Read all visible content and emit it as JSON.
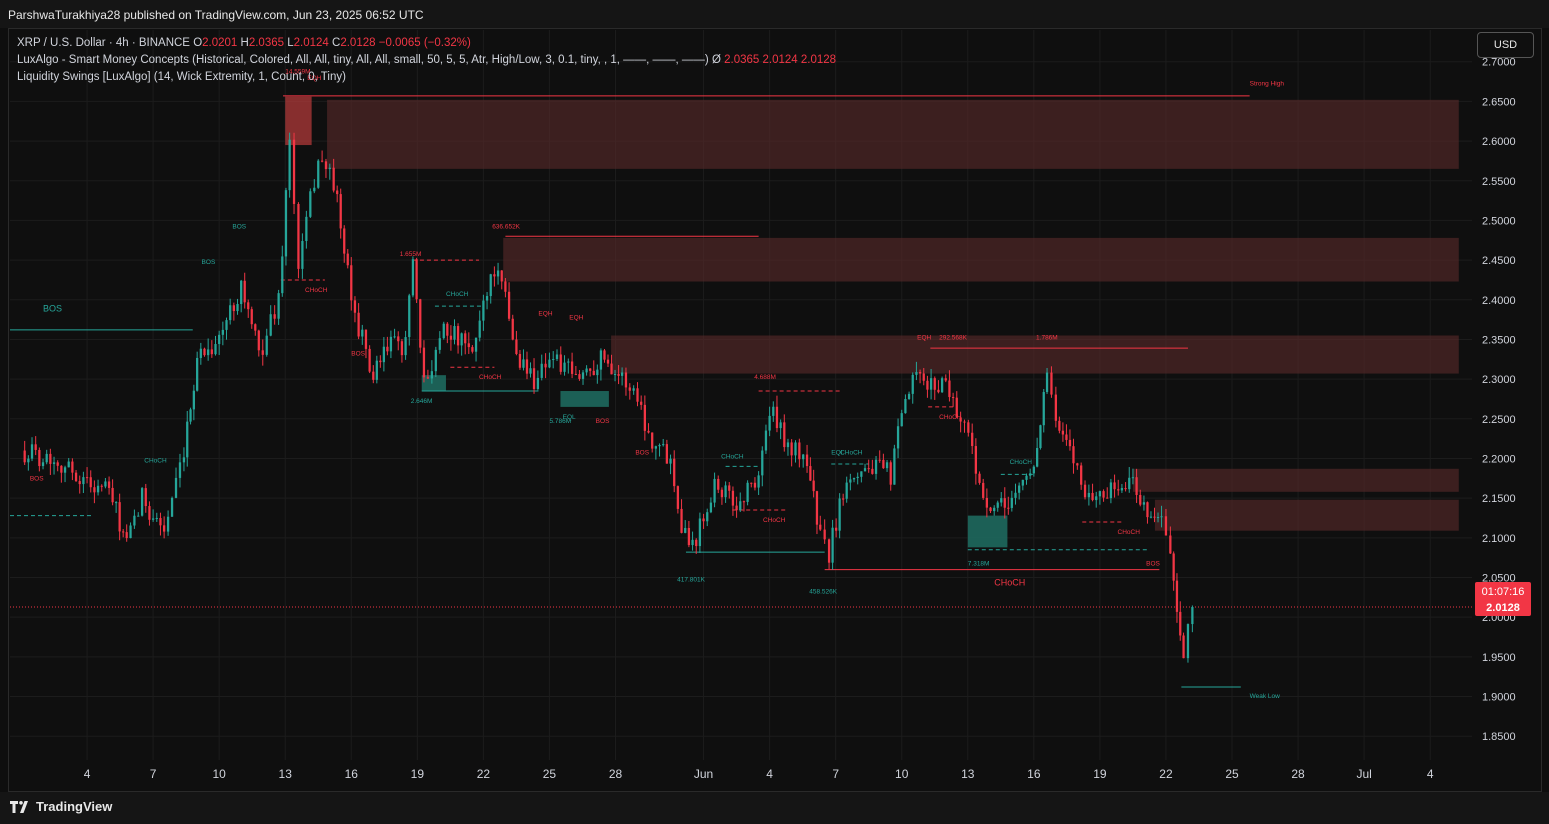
{
  "header": {
    "publisher_text": "ParshwaTurakhiya28 published on TradingView.com, Jun 23, 2025 06:52 UTC"
  },
  "legend": {
    "symbol": "XRP / U.S. Dollar · 4h · BINANCE",
    "o_label": "O",
    "o_value": "2.0201",
    "h_label": "H",
    "h_value": "2.0365",
    "l_label": "L",
    "l_value": "2.0124",
    "c_label": "C",
    "c_value": "2.0128",
    "change": "−0.0065 (−0.32%)",
    "indicator1": "LuxAlgo - Smart Money Concepts (Historical, Colored, All, All, tiny, All, All, small, 50, 5, 5, Atr, High/Low, 3, 0.1, tiny, , 1, ——, ——, ——)",
    "indicator1_symbol": "Ø",
    "indicator1_values": [
      "2.0365",
      "2.0124",
      "2.0128"
    ],
    "indicator2": "Liquidity Swings [LuxAlgo] (14, Wick Extremity, 1, Count, 0, Tiny)"
  },
  "currency_button": "USD",
  "brand": "TradingView",
  "colors": {
    "up": "#26a69a",
    "down": "#f23645",
    "supply_zone": "#5a2a2a",
    "demand_zone": "#1f6f63",
    "price_tag": "#f23645"
  },
  "chart_data": {
    "type": "candlestick",
    "symbol": "XRPUSD",
    "timeframe": "4h",
    "ylim": [
      1.82,
      2.74
    ],
    "y_ticks": [
      1.85,
      1.9,
      1.95,
      2.0,
      2.05,
      2.1,
      2.15,
      2.2,
      2.25,
      2.3,
      2.35,
      2.4,
      2.45,
      2.5,
      2.55,
      2.6,
      2.65,
      2.7
    ],
    "y_tick_labels": [
      "1.8500",
      "1.9000",
      "1.9500",
      "2.0000",
      "2.0500",
      "2.1000",
      "2.1500",
      "2.2000",
      "2.2500",
      "2.3000",
      "2.3500",
      "2.4000",
      "2.4500",
      "2.5000",
      "2.5500",
      "2.6000",
      "2.6500",
      "2.7000"
    ],
    "x_range_days": [
      -0.5,
      65.9
    ],
    "x_ticks": [
      {
        "day": 3,
        "label": "4"
      },
      {
        "day": 6,
        "label": "7"
      },
      {
        "day": 9,
        "label": "10"
      },
      {
        "day": 12,
        "label": "13"
      },
      {
        "day": 15,
        "label": "16"
      },
      {
        "day": 18,
        "label": "19"
      },
      {
        "day": 21,
        "label": "22"
      },
      {
        "day": 24,
        "label": "25"
      },
      {
        "day": 27,
        "label": "28"
      },
      {
        "day": 31,
        "label": "Jun"
      },
      {
        "day": 34,
        "label": "4"
      },
      {
        "day": 37,
        "label": "7"
      },
      {
        "day": 40,
        "label": "10"
      },
      {
        "day": 43,
        "label": "13"
      },
      {
        "day": 46,
        "label": "16"
      },
      {
        "day": 49,
        "label": "19"
      },
      {
        "day": 52,
        "label": "22"
      },
      {
        "day": 55,
        "label": "25"
      },
      {
        "day": 58,
        "label": "28"
      },
      {
        "day": 61,
        "label": "Jul"
      },
      {
        "day": 64,
        "label": "4"
      }
    ],
    "x_days_note_hidden": true,
    "anchors": [
      [
        0,
        2.21
      ],
      [
        1.5,
        2.2
      ],
      [
        3,
        2.17
      ],
      [
        4,
        2.16
      ],
      [
        4.8,
        2.09
      ],
      [
        5.5,
        2.15
      ],
      [
        6.5,
        2.11
      ],
      [
        7.4,
        2.2
      ],
      [
        8,
        2.33
      ],
      [
        9,
        2.35
      ],
      [
        10,
        2.42
      ],
      [
        10.8,
        2.33
      ],
      [
        11.7,
        2.4
      ],
      [
        12.2,
        2.6
      ],
      [
        12.6,
        2.44
      ],
      [
        13.5,
        2.58
      ],
      [
        14.2,
        2.55
      ],
      [
        15,
        2.4
      ],
      [
        16,
        2.3
      ],
      [
        16.8,
        2.35
      ],
      [
        17.3,
        2.33
      ],
      [
        17.8,
        2.44
      ],
      [
        18.3,
        2.29
      ],
      [
        19.2,
        2.37
      ],
      [
        20.5,
        2.33
      ],
      [
        21,
        2.4
      ],
      [
        21.5,
        2.44
      ],
      [
        22,
        2.4
      ],
      [
        22.5,
        2.33
      ],
      [
        23.3,
        2.3
      ],
      [
        24,
        2.33
      ],
      [
        25.2,
        2.3
      ],
      [
        26.5,
        2.33
      ],
      [
        27.3,
        2.3
      ],
      [
        28,
        2.28
      ],
      [
        28.5,
        2.23
      ],
      [
        29.5,
        2.2
      ],
      [
        30,
        2.12
      ],
      [
        30.5,
        2.09
      ],
      [
        31.5,
        2.17
      ],
      [
        32.5,
        2.14
      ],
      [
        33.5,
        2.18
      ],
      [
        34,
        2.26
      ],
      [
        35,
        2.21
      ],
      [
        35.7,
        2.2
      ],
      [
        36.3,
        2.1
      ],
      [
        36.7,
        2.08
      ],
      [
        37.5,
        2.18
      ],
      [
        38.5,
        2.19
      ],
      [
        39.5,
        2.18
      ],
      [
        40,
        2.25
      ],
      [
        40.5,
        2.3
      ],
      [
        41.5,
        2.29
      ],
      [
        42,
        2.3
      ],
      [
        42.5,
        2.26
      ],
      [
        43.2,
        2.22
      ],
      [
        43.7,
        2.14
      ],
      [
        44.2,
        2.13
      ],
      [
        45,
        2.15
      ],
      [
        46,
        2.19
      ],
      [
        46.6,
        2.31
      ],
      [
        47,
        2.24
      ],
      [
        47.8,
        2.2
      ],
      [
        48.5,
        2.15
      ],
      [
        49.5,
        2.16
      ],
      [
        50.5,
        2.17
      ],
      [
        51,
        2.14
      ],
      [
        51.8,
        2.12
      ],
      [
        52.2,
        2.08
      ],
      [
        52.5,
        2.0
      ],
      [
        52.8,
        1.94
      ],
      [
        53.2,
        2.02
      ]
    ],
    "last_price": 2.0128,
    "last_price_label": "2.0128",
    "countdown_label": "01:07:16",
    "zones": [
      {
        "kind": "supply",
        "x0": 13.9,
        "x1": 65.3,
        "y0": 2.565,
        "y1": 2.652
      },
      {
        "kind": "supply",
        "x0": 21.9,
        "x1": 65.3,
        "y0": 2.423,
        "y1": 2.478
      },
      {
        "kind": "supply",
        "x0": 26.8,
        "x1": 65.3,
        "y0": 2.307,
        "y1": 2.355
      },
      {
        "kind": "supply",
        "x0": 50.5,
        "x1": 65.3,
        "y0": 2.158,
        "y1": 2.187
      },
      {
        "kind": "supply",
        "x0": 51.5,
        "x1": 65.3,
        "y0": 2.109,
        "y1": 2.148
      },
      {
        "kind": "supply_block",
        "x0": 12.0,
        "x1": 13.2,
        "y0": 2.595,
        "y1": 2.656
      },
      {
        "kind": "demand",
        "x0": 18.2,
        "x1": 19.3,
        "y0": 2.285,
        "y1": 2.305
      },
      {
        "kind": "demand",
        "x0": 24.5,
        "x1": 26.7,
        "y0": 2.265,
        "y1": 2.285
      },
      {
        "kind": "demand",
        "x0": 43.0,
        "x1": 44.8,
        "y0": 2.088,
        "y1": 2.128
      }
    ],
    "lines": [
      {
        "x0": 11.9,
        "x1": 55.8,
        "y": 2.657,
        "color": "#f23645",
        "dash": false
      },
      {
        "x0": 22.0,
        "x1": 33.5,
        "y": 2.48,
        "color": "#f23645",
        "dash": false
      },
      {
        "x0": 41.3,
        "x1": 53.0,
        "y": 2.339,
        "color": "#f23645",
        "dash": false
      },
      {
        "x0": -0.5,
        "x1": 7.8,
        "y": 2.362,
        "color": "#26a69a",
        "dash": false
      },
      {
        "x0": 18.2,
        "x1": 23.5,
        "y": 2.285,
        "color": "#26a69a",
        "dash": false
      },
      {
        "x0": 30.2,
        "x1": 36.5,
        "y": 2.082,
        "color": "#26a69a",
        "dash": false
      },
      {
        "x0": 36.5,
        "x1": 51.7,
        "y": 2.06,
        "color": "#f23645",
        "dash": false
      },
      {
        "x0": 52.7,
        "x1": 55.4,
        "y": 1.912,
        "color": "#26a69a",
        "dash": false
      },
      {
        "x0": 43.0,
        "x1": 51.2,
        "y": 2.085,
        "color": "#26a69a",
        "dash": true
      },
      {
        "x0": -0.5,
        "x1": 3.3,
        "y": 2.128,
        "color": "#26a69a",
        "dash": true
      },
      {
        "x0": 17.8,
        "x1": 20.8,
        "y": 2.45,
        "color": "#f23645",
        "dash": true
      },
      {
        "x0": 33.5,
        "x1": 37.2,
        "y": 2.285,
        "color": "#f23645",
        "dash": true
      },
      {
        "x0": 11.8,
        "x1": 13.8,
        "y": 2.425,
        "color": "#f23645",
        "dash": true
      },
      {
        "x0": 19.5,
        "x1": 21.5,
        "y": 2.315,
        "color": "#f23645",
        "dash": true
      },
      {
        "x0": 32.3,
        "x1": 34.8,
        "y": 2.135,
        "color": "#f23645",
        "dash": true
      },
      {
        "x0": 41.2,
        "x1": 42.5,
        "y": 2.265,
        "color": "#f23645",
        "dash": true
      },
      {
        "x0": 48.2,
        "x1": 50.0,
        "y": 2.12,
        "color": "#f23645",
        "dash": true
      },
      {
        "x0": 36.8,
        "x1": 38.5,
        "y": 2.193,
        "color": "#26a69a",
        "dash": true
      },
      {
        "x0": 32.0,
        "x1": 33.5,
        "y": 2.19,
        "color": "#26a69a",
        "dash": true
      },
      {
        "x0": 18.8,
        "x1": 21.0,
        "y": 2.392,
        "color": "#26a69a",
        "dash": true
      },
      {
        "x0": 44.5,
        "x1": 46.0,
        "y": 2.18,
        "color": "#26a69a",
        "dash": true
      }
    ],
    "labels": [
      {
        "text": "14.559M",
        "x": 12.0,
        "y": 2.685,
        "color": "#f23645"
      },
      {
        "text": "EQH",
        "x": 13.0,
        "y": 2.677,
        "color": "#f23645"
      },
      {
        "text": "Strong High",
        "x": 55.8,
        "y": 2.67,
        "color": "#f23645"
      },
      {
        "text": "636.652K",
        "x": 21.4,
        "y": 2.49,
        "color": "#f23645"
      },
      {
        "text": "1.655M",
        "x": 17.2,
        "y": 2.455,
        "color": "#f23645"
      },
      {
        "text": "EQH",
        "x": 23.5,
        "y": 2.38,
        "color": "#f23645"
      },
      {
        "text": "EQH",
        "x": 24.9,
        "y": 2.375,
        "color": "#f23645"
      },
      {
        "text": "EQH",
        "x": 40.7,
        "y": 2.35,
        "color": "#f23645"
      },
      {
        "text": "292.568K",
        "x": 41.7,
        "y": 2.35,
        "color": "#f23645"
      },
      {
        "text": "1.786M",
        "x": 46.1,
        "y": 2.35,
        "color": "#f23645"
      },
      {
        "text": "4.688M",
        "x": 33.3,
        "y": 2.3,
        "color": "#f23645"
      },
      {
        "text": "CHoCH",
        "x": 12.9,
        "y": 2.41,
        "color": "#f23645"
      },
      {
        "text": "CHoCH",
        "x": 20.8,
        "y": 2.3,
        "color": "#f23645"
      },
      {
        "text": "CHoCH",
        "x": 33.7,
        "y": 2.12,
        "color": "#f23645"
      },
      {
        "text": "CHoCH",
        "x": 41.7,
        "y": 2.25,
        "color": "#f23645"
      },
      {
        "text": "CHoCH",
        "x": 49.8,
        "y": 2.105,
        "color": "#f23645"
      },
      {
        "text": "CHoCH",
        "x": 44.2,
        "y": 2.04,
        "color": "#f23645",
        "size": 9
      },
      {
        "text": "BOS",
        "x": 15.0,
        "y": 2.33,
        "color": "#f23645"
      },
      {
        "text": "BOS",
        "x": 26.1,
        "y": 2.245,
        "color": "#f23645"
      },
      {
        "text": "BOS",
        "x": 27.9,
        "y": 2.205,
        "color": "#f23645"
      },
      {
        "text": "BOS",
        "x": 51.1,
        "y": 2.065,
        "color": "#f23645"
      },
      {
        "text": "BOS",
        "x": 0.4,
        "y": 2.172,
        "color": "#f23645"
      },
      {
        "text": "BOS",
        "x": 1.0,
        "y": 2.385,
        "color": "#26a69a",
        "size": 9
      },
      {
        "text": "BOS",
        "x": 8.2,
        "y": 2.445,
        "color": "#26a69a"
      },
      {
        "text": "BOS",
        "x": 9.6,
        "y": 2.49,
        "color": "#26a69a"
      },
      {
        "text": "CHoCH",
        "x": 5.6,
        "y": 2.195,
        "color": "#26a69a"
      },
      {
        "text": "CHoCH",
        "x": 19.3,
        "y": 2.405,
        "color": "#26a69a"
      },
      {
        "text": "CHoCH",
        "x": 31.8,
        "y": 2.2,
        "color": "#26a69a"
      },
      {
        "text": "CHoCH",
        "x": 37.2,
        "y": 2.205,
        "color": "#26a69a"
      },
      {
        "text": "CHoCH",
        "x": 44.9,
        "y": 2.193,
        "color": "#26a69a"
      },
      {
        "text": "EQL",
        "x": 24.6,
        "y": 2.25,
        "color": "#26a69a"
      },
      {
        "text": "EQL",
        "x": 36.8,
        "y": 2.205,
        "color": "#26a69a"
      },
      {
        "text": "2.646M",
        "x": 17.7,
        "y": 2.27,
        "color": "#26a69a"
      },
      {
        "text": "5.786M",
        "x": 24.0,
        "y": 2.245,
        "color": "#26a69a"
      },
      {
        "text": "417.801K",
        "x": 29.8,
        "y": 2.045,
        "color": "#26a69a"
      },
      {
        "text": "458.526K",
        "x": 35.8,
        "y": 2.03,
        "color": "#26a69a"
      },
      {
        "text": "7.318M",
        "x": 43.0,
        "y": 2.065,
        "color": "#26a69a"
      },
      {
        "text": "Weak Low",
        "x": 55.8,
        "y": 1.898,
        "color": "#26a69a"
      }
    ]
  }
}
